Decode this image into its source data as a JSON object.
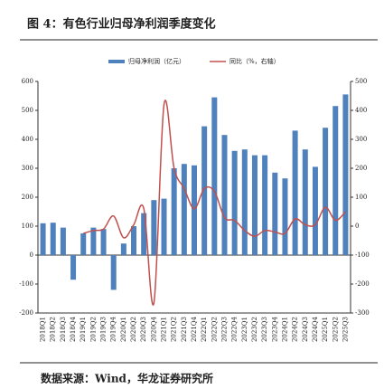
{
  "title": "图 4：有色行业归母净利润季度变化",
  "source": "数据来源：Wind，华龙证券研究所",
  "chart_data": {
    "type": "bar_line",
    "categories": [
      "2018Q1",
      "2018Q2",
      "2018Q3",
      "2018Q4",
      "2019Q1",
      "2019Q2",
      "2019Q3",
      "2019Q4",
      "2020Q1",
      "2020Q2",
      "2020Q3",
      "2020Q4",
      "2021Q1",
      "2021Q2",
      "2021Q3",
      "2021Q4",
      "2022Q1",
      "2022Q2",
      "2022Q3",
      "2022Q4",
      "2023Q1",
      "2023Q2",
      "2023Q3",
      "2023Q4",
      "2024Q1",
      "2024Q2",
      "2024Q3",
      "2024Q4",
      "2025Q1",
      "2025Q2",
      "2025Q3"
    ],
    "series": [
      {
        "name": "归母净利润（亿元）",
        "color": "#4f81bd",
        "type": "bar",
        "values": [
          110,
          112,
          95,
          -85,
          75,
          95,
          90,
          -120,
          40,
          100,
          145,
          190,
          195,
          300,
          315,
          310,
          445,
          545,
          415,
          360,
          365,
          345,
          345,
          285,
          265,
          430,
          365,
          305,
          440,
          515,
          555
        ]
      },
      {
        "name": "同比（%，右轴）",
        "color": "#c0504d",
        "type": "line",
        "axis": "y2",
        "values": [
          null,
          null,
          null,
          null,
          -25,
          -15,
          -10,
          35,
          -40,
          5,
          60,
          -265,
          420,
          200,
          130,
          60,
          130,
          120,
          30,
          20,
          -15,
          -35,
          -15,
          -20,
          -25,
          25,
          5,
          5,
          65,
          20,
          50
        ]
      }
    ],
    "ylim": [
      -200,
      600
    ],
    "yticks": [
      -200,
      -100,
      0,
      100,
      200,
      300,
      400,
      500,
      600
    ],
    "y2lim": [
      -300,
      500
    ],
    "y2ticks": [
      -300,
      -200,
      -100,
      0,
      100,
      200,
      300,
      400,
      500
    ],
    "legend": "top"
  }
}
